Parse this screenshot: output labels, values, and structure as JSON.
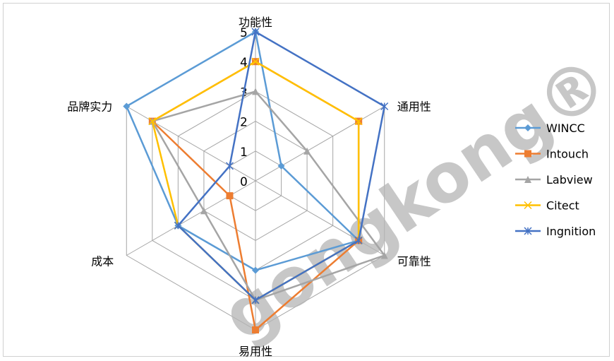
{
  "chart_data": {
    "type": "radar",
    "axes": [
      "功能性",
      "通用性",
      "可靠性",
      "易用性",
      "成本",
      "品牌实力"
    ],
    "rlim": [
      0,
      5
    ],
    "ticks": [
      "0",
      "1",
      "2",
      "3",
      "4",
      "5"
    ],
    "grid": true,
    "legend_position": "right",
    "series": [
      {
        "name": "WINCC",
        "values": [
          5,
          1,
          4,
          3,
          3,
          5
        ],
        "color": "#5B9BD5",
        "marker": "diamond"
      },
      {
        "name": "Intouch",
        "values": [
          4,
          4,
          4,
          5,
          1,
          4
        ],
        "color": "#ED7D31",
        "marker": "square"
      },
      {
        "name": "Labview",
        "values": [
          3,
          2,
          5,
          4,
          2,
          4
        ],
        "color": "#A5A5A5",
        "marker": "triangle"
      },
      {
        "name": "Citect",
        "values": [
          4,
          4,
          4,
          4,
          3,
          4
        ],
        "color": "#FFC000",
        "marker": "x"
      },
      {
        "name": "Ingnition",
        "values": [
          5,
          5,
          4,
          4,
          3,
          1
        ],
        "color": "#4472C4",
        "marker": "star"
      }
    ]
  },
  "watermark": "gongkong®"
}
